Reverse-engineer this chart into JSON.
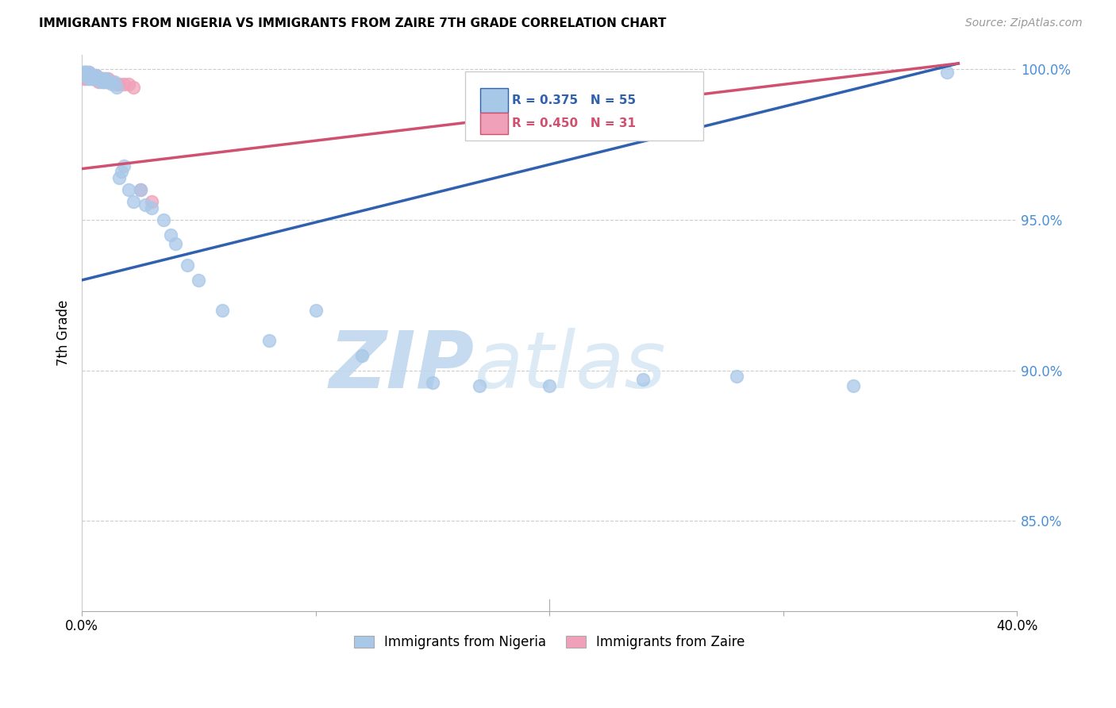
{
  "title": "IMMIGRANTS FROM NIGERIA VS IMMIGRANTS FROM ZAIRE 7TH GRADE CORRELATION CHART",
  "source": "Source: ZipAtlas.com",
  "xlabel_nigeria": "Immigrants from Nigeria",
  "xlabel_zaire": "Immigrants from Zaire",
  "ylabel": "7th Grade",
  "x_min": 0.0,
  "x_max": 0.4,
  "y_min": 0.82,
  "y_max": 1.005,
  "y_ticks": [
    0.85,
    0.9,
    0.95,
    1.0
  ],
  "y_tick_labels": [
    "85.0%",
    "90.0%",
    "95.0%",
    "100.0%"
  ],
  "x_ticks": [
    0.0,
    0.1,
    0.2,
    0.3,
    0.4
  ],
  "x_tick_labels": [
    "0.0%",
    "",
    "",
    "",
    "40.0%"
  ],
  "nigeria_color": "#a8c8e8",
  "zaire_color": "#f0a0b8",
  "nigeria_line_color": "#3060b0",
  "zaire_line_color": "#d05070",
  "R_nigeria": 0.375,
  "N_nigeria": 55,
  "R_zaire": 0.45,
  "N_zaire": 31,
  "watermark_zip": "ZIP",
  "watermark_atlas": "atlas",
  "watermark_color": "#c8dff0",
  "nigeria_x": [
    0.001,
    0.001,
    0.001,
    0.002,
    0.002,
    0.002,
    0.003,
    0.003,
    0.003,
    0.004,
    0.004,
    0.005,
    0.005,
    0.005,
    0.006,
    0.006,
    0.006,
    0.007,
    0.007,
    0.008,
    0.008,
    0.009,
    0.009,
    0.01,
    0.01,
    0.011,
    0.011,
    0.012,
    0.013,
    0.014,
    0.015,
    0.016,
    0.017,
    0.018,
    0.02,
    0.022,
    0.025,
    0.027,
    0.03,
    0.035,
    0.038,
    0.04,
    0.045,
    0.05,
    0.06,
    0.08,
    0.1,
    0.12,
    0.15,
    0.17,
    0.2,
    0.24,
    0.28,
    0.33,
    0.37
  ],
  "nigeria_y": [
    0.999,
    0.999,
    0.998,
    0.999,
    0.999,
    0.998,
    0.999,
    0.998,
    0.997,
    0.998,
    0.997,
    0.998,
    0.997,
    0.997,
    0.998,
    0.997,
    0.997,
    0.997,
    0.997,
    0.997,
    0.996,
    0.997,
    0.996,
    0.997,
    0.996,
    0.996,
    0.996,
    0.996,
    0.995,
    0.996,
    0.994,
    0.964,
    0.966,
    0.968,
    0.96,
    0.956,
    0.96,
    0.955,
    0.954,
    0.95,
    0.945,
    0.942,
    0.935,
    0.93,
    0.92,
    0.91,
    0.92,
    0.905,
    0.896,
    0.895,
    0.895,
    0.897,
    0.898,
    0.895,
    0.999
  ],
  "zaire_x": [
    0.001,
    0.001,
    0.001,
    0.001,
    0.002,
    0.002,
    0.002,
    0.003,
    0.003,
    0.004,
    0.004,
    0.005,
    0.005,
    0.006,
    0.006,
    0.007,
    0.007,
    0.008,
    0.009,
    0.009,
    0.01,
    0.011,
    0.012,
    0.013,
    0.015,
    0.016,
    0.018,
    0.02,
    0.022,
    0.025,
    0.03
  ],
  "zaire_y": [
    0.999,
    0.999,
    0.998,
    0.997,
    0.999,
    0.998,
    0.997,
    0.999,
    0.998,
    0.998,
    0.997,
    0.998,
    0.997,
    0.998,
    0.997,
    0.997,
    0.996,
    0.997,
    0.997,
    0.996,
    0.996,
    0.997,
    0.996,
    0.996,
    0.995,
    0.995,
    0.995,
    0.995,
    0.994,
    0.96,
    0.956
  ],
  "nigeria_line_x0": 0.0,
  "nigeria_line_y0": 0.93,
  "nigeria_line_x1": 0.375,
  "nigeria_line_y1": 1.002,
  "zaire_line_x0": 0.0,
  "zaire_line_y0": 0.967,
  "zaire_line_x1": 0.375,
  "zaire_line_y1": 1.002
}
